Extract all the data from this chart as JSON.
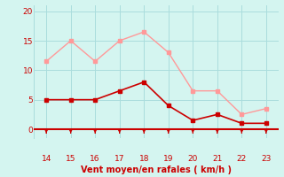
{
  "x": [
    14,
    15,
    16,
    17,
    18,
    19,
    20,
    21,
    22,
    23
  ],
  "y_wind_avg": [
    5,
    5,
    5,
    6.5,
    8,
    4,
    1.5,
    2.5,
    1,
    1
  ],
  "y_wind_gust": [
    11.5,
    15,
    11.5,
    15,
    16.5,
    13,
    6.5,
    6.5,
    2.5,
    3.5
  ],
  "line_color_avg": "#cc0000",
  "line_color_gust": "#ff9999",
  "bg_color": "#d4f5f0",
  "grid_color": "#aadddd",
  "axis_line_color": "#cc0000",
  "xlabel": "Vent moyen/en rafales ( km/h )",
  "xlabel_color": "#cc0000",
  "tick_color": "#cc0000",
  "ylim": [
    -1.5,
    21
  ],
  "yticks": [
    0,
    5,
    10,
    15,
    20
  ],
  "xlim": [
    13.5,
    23.5
  ],
  "xticks": [
    14,
    15,
    16,
    17,
    18,
    19,
    20,
    21,
    22,
    23
  ]
}
